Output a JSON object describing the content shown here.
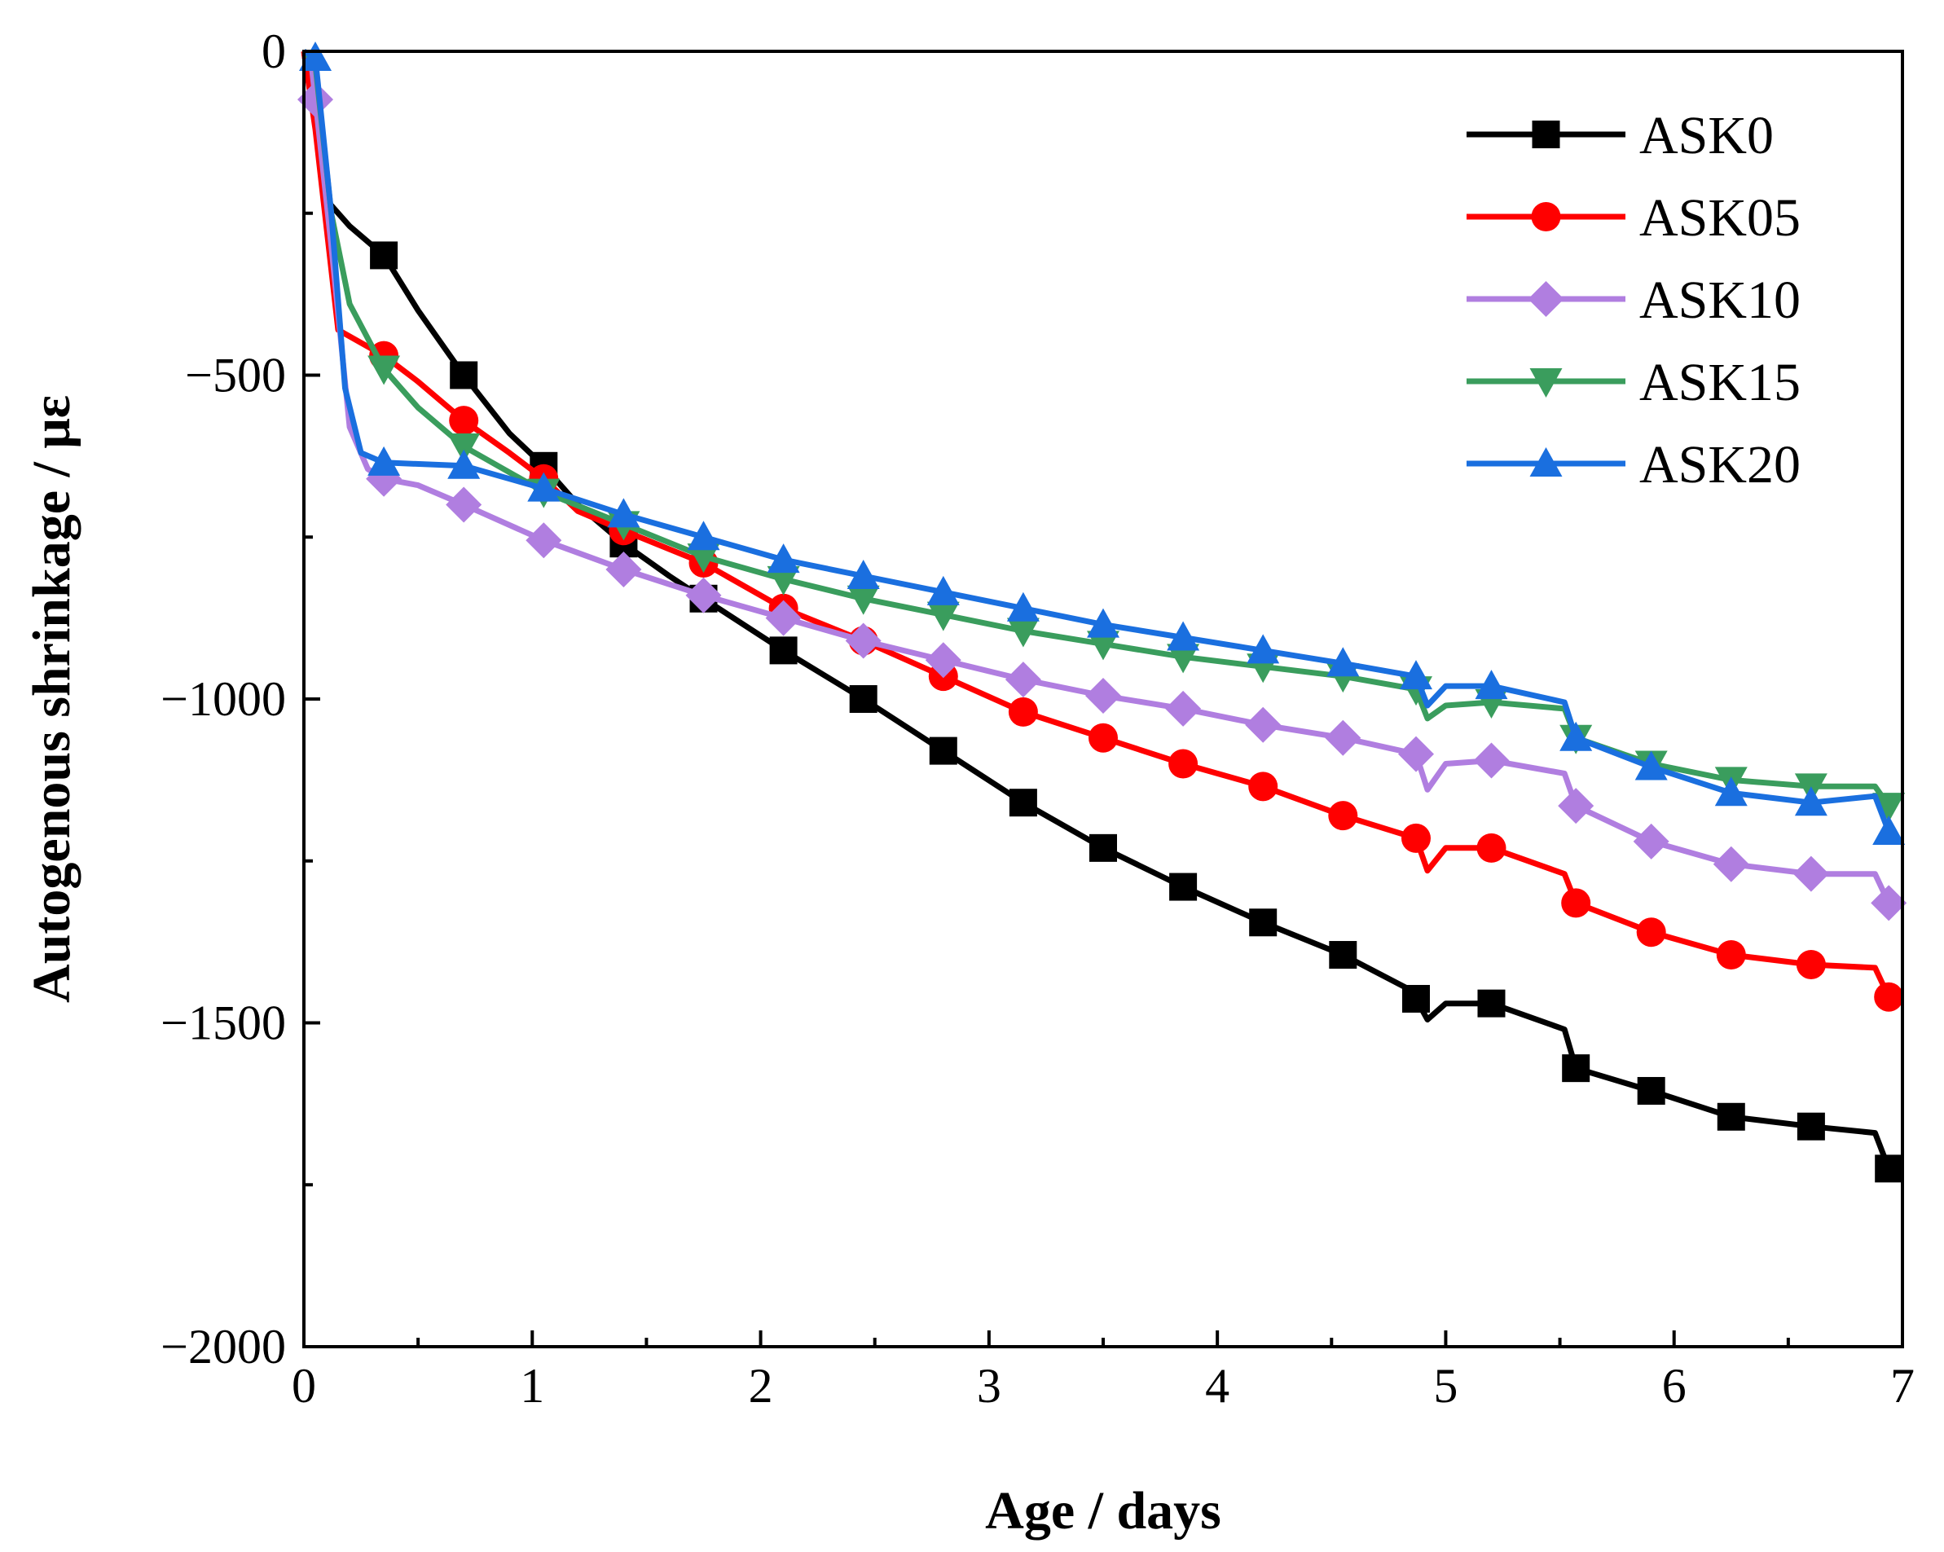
{
  "chart_data": {
    "type": "line",
    "title": "",
    "xlabel": "Age / days",
    "ylabel": "Autogenous shrinkage / με",
    "xlim": [
      0,
      7
    ],
    "ylim": [
      -2000,
      0
    ],
    "x_ticks": [
      0,
      1,
      2,
      3,
      4,
      5,
      6,
      7
    ],
    "x_tick_labels": [
      "0",
      "1",
      "2",
      "3",
      "4",
      "5",
      "6",
      "7"
    ],
    "y_ticks": [
      0,
      -500,
      -1000,
      -1500,
      -2000
    ],
    "y_tick_labels": [
      "0",
      "−500",
      "−1000",
      "−1500",
      "−2000"
    ],
    "grid": false,
    "legend_position": "top-right",
    "series": [
      {
        "name": "ASK0",
        "color": "#000000",
        "marker": "square",
        "line": [
          [
            0,
            0
          ],
          [
            0.1,
            -230
          ],
          [
            0.2,
            -270
          ],
          [
            0.35,
            -315
          ],
          [
            0.5,
            -400
          ],
          [
            0.7,
            -500
          ],
          [
            0.9,
            -590
          ],
          [
            1.05,
            -640
          ],
          [
            1.2,
            -700
          ],
          [
            1.4,
            -760
          ],
          [
            1.6,
            -810
          ],
          [
            1.75,
            -845
          ],
          [
            2.1,
            -925
          ],
          [
            2.45,
            -1000
          ],
          [
            2.8,
            -1080
          ],
          [
            3.15,
            -1160
          ],
          [
            3.5,
            -1230
          ],
          [
            3.85,
            -1290
          ],
          [
            4.2,
            -1345
          ],
          [
            4.55,
            -1395
          ],
          [
            4.85,
            -1450
          ],
          [
            4.92,
            -1495
          ],
          [
            5.0,
            -1470
          ],
          [
            5.2,
            -1470
          ],
          [
            5.52,
            -1510
          ],
          [
            5.57,
            -1570
          ],
          [
            5.9,
            -1605
          ],
          [
            6.25,
            -1645
          ],
          [
            6.6,
            -1660
          ],
          [
            6.88,
            -1670
          ],
          [
            6.94,
            -1725
          ]
        ],
        "markers_x": [
          0.35,
          0.7,
          1.05,
          1.4,
          1.75,
          2.1,
          2.45,
          2.8,
          3.15,
          3.5,
          3.85,
          4.2,
          4.55,
          4.87,
          5.2,
          5.57,
          5.9,
          6.25,
          6.6,
          6.94
        ]
      },
      {
        "name": "ASK05",
        "color": "#ff0000",
        "marker": "circle",
        "line": [
          [
            0,
            0
          ],
          [
            0.05,
            -120
          ],
          [
            0.15,
            -430
          ],
          [
            0.35,
            -470
          ],
          [
            0.5,
            -510
          ],
          [
            0.7,
            -570
          ],
          [
            0.9,
            -620
          ],
          [
            1.05,
            -660
          ],
          [
            1.2,
            -710
          ],
          [
            1.4,
            -740
          ],
          [
            1.75,
            -790
          ],
          [
            2.1,
            -860
          ],
          [
            2.45,
            -910
          ],
          [
            2.8,
            -965
          ],
          [
            3.15,
            -1020
          ],
          [
            3.5,
            -1060
          ],
          [
            3.85,
            -1100
          ],
          [
            4.2,
            -1135
          ],
          [
            4.55,
            -1180
          ],
          [
            4.87,
            -1215
          ],
          [
            4.92,
            -1265
          ],
          [
            5.0,
            -1230
          ],
          [
            5.2,
            -1230
          ],
          [
            5.52,
            -1270
          ],
          [
            5.57,
            -1315
          ],
          [
            5.9,
            -1360
          ],
          [
            6.25,
            -1395
          ],
          [
            6.6,
            -1410
          ],
          [
            6.88,
            -1415
          ],
          [
            6.94,
            -1460
          ]
        ],
        "markers_x": [
          0.35,
          0.7,
          1.05,
          1.4,
          1.75,
          2.1,
          2.45,
          2.8,
          3.15,
          3.5,
          3.85,
          4.2,
          4.55,
          4.87,
          5.2,
          5.57,
          5.9,
          6.25,
          6.6,
          6.94
        ]
      },
      {
        "name": "ASK10",
        "color": "#b07ee0",
        "marker": "diamond",
        "line": [
          [
            0,
            0
          ],
          [
            0.03,
            -10
          ],
          [
            0.12,
            -300
          ],
          [
            0.2,
            -580
          ],
          [
            0.28,
            -645
          ],
          [
            0.35,
            -660
          ],
          [
            0.5,
            -670
          ],
          [
            0.7,
            -700
          ],
          [
            1.05,
            -755
          ],
          [
            1.4,
            -800
          ],
          [
            1.75,
            -840
          ],
          [
            2.1,
            -875
          ],
          [
            2.45,
            -910
          ],
          [
            2.8,
            -940
          ],
          [
            3.15,
            -970
          ],
          [
            3.5,
            -995
          ],
          [
            3.85,
            -1015
          ],
          [
            4.2,
            -1040
          ],
          [
            4.55,
            -1060
          ],
          [
            4.87,
            -1085
          ],
          [
            4.92,
            -1140
          ],
          [
            5.0,
            -1100
          ],
          [
            5.2,
            -1095
          ],
          [
            5.52,
            -1115
          ],
          [
            5.57,
            -1165
          ],
          [
            5.9,
            -1220
          ],
          [
            6.25,
            -1255
          ],
          [
            6.6,
            -1270
          ],
          [
            6.88,
            -1270
          ],
          [
            6.94,
            -1315
          ]
        ],
        "markers_x": [
          0.05,
          0.35,
          0.7,
          1.05,
          1.4,
          1.75,
          2.1,
          2.45,
          2.8,
          3.15,
          3.5,
          3.85,
          4.2,
          4.55,
          4.87,
          5.2,
          5.57,
          5.9,
          6.25,
          6.6,
          6.94
        ]
      },
      {
        "name": "ASK15",
        "color": "#3a9d5d",
        "marker": "triangle-down",
        "line": [
          [
            0,
            0
          ],
          [
            0.05,
            -20
          ],
          [
            0.12,
            -250
          ],
          [
            0.2,
            -390
          ],
          [
            0.35,
            -490
          ],
          [
            0.5,
            -550
          ],
          [
            0.7,
            -610
          ],
          [
            1.05,
            -680
          ],
          [
            1.4,
            -730
          ],
          [
            1.75,
            -780
          ],
          [
            2.1,
            -815
          ],
          [
            2.45,
            -845
          ],
          [
            2.8,
            -870
          ],
          [
            3.15,
            -895
          ],
          [
            3.5,
            -915
          ],
          [
            3.85,
            -935
          ],
          [
            4.2,
            -950
          ],
          [
            4.55,
            -965
          ],
          [
            4.87,
            -985
          ],
          [
            4.92,
            -1030
          ],
          [
            5.0,
            -1010
          ],
          [
            5.2,
            -1005
          ],
          [
            5.52,
            -1015
          ],
          [
            5.57,
            -1060
          ],
          [
            5.9,
            -1100
          ],
          [
            6.25,
            -1125
          ],
          [
            6.6,
            -1135
          ],
          [
            6.88,
            -1135
          ],
          [
            6.94,
            -1165
          ]
        ],
        "markers_x": [
          0.35,
          0.7,
          1.05,
          1.4,
          1.75,
          2.1,
          2.45,
          2.8,
          3.15,
          3.5,
          3.85,
          4.2,
          4.55,
          4.87,
          5.2,
          5.57,
          5.9,
          6.25,
          6.6,
          6.94
        ]
      },
      {
        "name": "ASK20",
        "color": "#1a6fdf",
        "marker": "triangle-up",
        "line": [
          [
            0,
            0
          ],
          [
            0.05,
            -10
          ],
          [
            0.12,
            -250
          ],
          [
            0.18,
            -520
          ],
          [
            0.25,
            -620
          ],
          [
            0.35,
            -635
          ],
          [
            0.7,
            -640
          ],
          [
            1.05,
            -675
          ],
          [
            1.4,
            -715
          ],
          [
            1.75,
            -750
          ],
          [
            2.1,
            -785
          ],
          [
            2.45,
            -810
          ],
          [
            2.8,
            -835
          ],
          [
            3.15,
            -860
          ],
          [
            3.5,
            -885
          ],
          [
            3.85,
            -905
          ],
          [
            4.2,
            -925
          ],
          [
            4.55,
            -945
          ],
          [
            4.87,
            -965
          ],
          [
            4.92,
            -1010
          ],
          [
            5.0,
            -980
          ],
          [
            5.2,
            -980
          ],
          [
            5.52,
            -1005
          ],
          [
            5.57,
            -1060
          ],
          [
            5.9,
            -1105
          ],
          [
            6.25,
            -1145
          ],
          [
            6.6,
            -1160
          ],
          [
            6.88,
            -1150
          ],
          [
            6.94,
            -1205
          ]
        ],
        "markers_x": [
          0.05,
          0.35,
          0.7,
          1.05,
          1.4,
          1.75,
          2.1,
          2.45,
          2.8,
          3.15,
          3.5,
          3.85,
          4.2,
          4.55,
          4.87,
          5.2,
          5.57,
          5.9,
          6.25,
          6.6,
          6.94
        ]
      }
    ]
  }
}
